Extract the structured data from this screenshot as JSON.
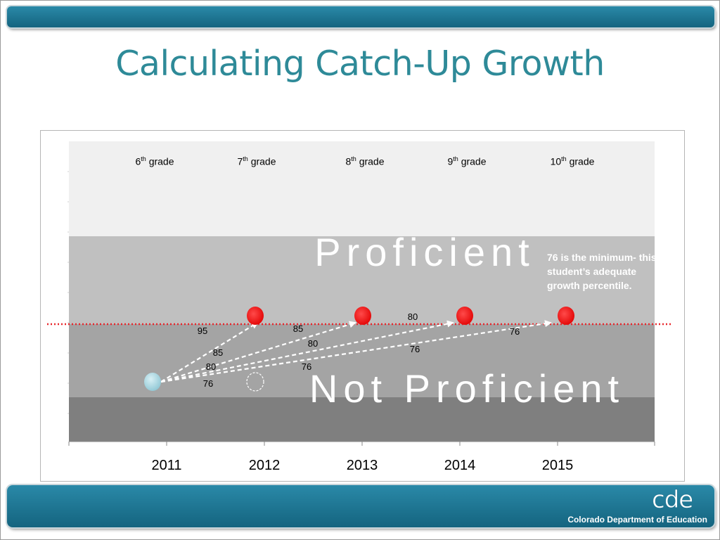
{
  "title": "Calculating Catch-Up Growth",
  "org": {
    "name": "Colorado Department of Education",
    "logo_text": "cde"
  },
  "callout": "76 is the minimum- this student’s adequate growth percentile.",
  "colors": {
    "title": "#2e8a98",
    "bar": "#1a6f8c",
    "proficient_band": "#c0c0c0",
    "not_proficient_band": "#a4a4a4",
    "lowest_band": "#7f7f7f",
    "top_band": "#f0f0f0",
    "target_marker": "#ff0000",
    "start_marker": "#9ecfda",
    "cut_line": "#e8262b"
  },
  "chart_data": {
    "type": "scatter",
    "x": [
      "2011",
      "2012",
      "2013",
      "2014",
      "2015"
    ],
    "grades": [
      {
        "num": "6",
        "suffix": "th",
        "label": "grade",
        "year": "2011"
      },
      {
        "num": "7",
        "suffix": "th",
        "label": "grade",
        "year": "2012"
      },
      {
        "num": "8",
        "suffix": "th",
        "label": "grade",
        "year": "2013"
      },
      {
        "num": "9",
        "suffix": "th",
        "label": "grade",
        "year": "2014"
      },
      {
        "num": "10",
        "suffix": "th",
        "label": "grade",
        "year": "2015"
      }
    ],
    "zones": {
      "upper": "Proficient",
      "lower": "Not Proficient"
    },
    "start": {
      "year": "2011"
    },
    "targets": [
      "2012",
      "2013",
      "2014",
      "2015"
    ],
    "empty_marker": {
      "year": "2012"
    },
    "paths": [
      {
        "to": "2012",
        "labels": [
          "95",
          "85",
          "80",
          "76"
        ]
      },
      {
        "to": "2013",
        "labels": [
          "85",
          "80",
          "76"
        ]
      },
      {
        "to": "2014",
        "labels": [
          "80",
          "76"
        ]
      },
      {
        "to": "2015",
        "labels": [
          "76"
        ]
      }
    ],
    "grid": false,
    "legend": "none"
  }
}
